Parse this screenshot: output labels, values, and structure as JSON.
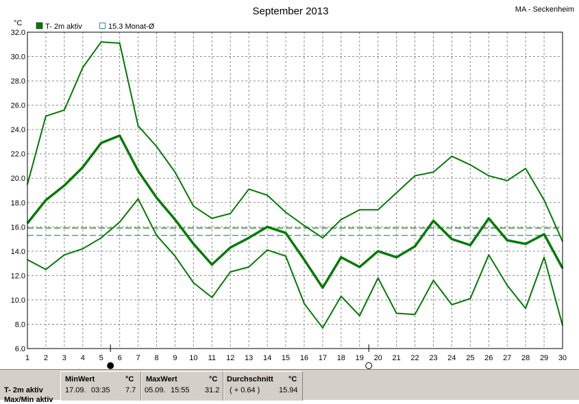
{
  "header": {
    "title": "September 2013",
    "station": "MA - Seckenheim",
    "unit": "°C"
  },
  "legend": {
    "series_label": "T- 2m aktiv",
    "mean_label": "15.3 Monat-Ø"
  },
  "colors": {
    "series": "#007a00",
    "monthly_mean_line": "#2f8f8f",
    "reference_line": "#006400",
    "grid": "#8a8a8a",
    "stats_bg": "#d4d0c8"
  },
  "chart_data": {
    "type": "line",
    "title": "September 2013",
    "ylabel": "°C",
    "xlabel": "",
    "xlim": [
      1,
      30
    ],
    "ylim": [
      6.0,
      32.0
    ],
    "x_ticks": [
      1,
      2,
      3,
      4,
      5,
      6,
      7,
      8,
      9,
      10,
      11,
      12,
      13,
      14,
      15,
      16,
      17,
      18,
      19,
      20,
      21,
      22,
      23,
      24,
      25,
      26,
      27,
      28,
      29,
      30
    ],
    "y_ticks": [
      "6.0",
      "8.0",
      "10.0",
      "12.0",
      "14.0",
      "16.0",
      "18.0",
      "20.0",
      "22.0",
      "24.0",
      "26.0",
      "28.0",
      "30.0",
      "32.0"
    ],
    "grid": true,
    "x": [
      1,
      2,
      3,
      4,
      5,
      6,
      7,
      8,
      9,
      10,
      11,
      12,
      13,
      14,
      15,
      16,
      17,
      18,
      19,
      20,
      21,
      22,
      23,
      24,
      25,
      26,
      27,
      28,
      29,
      30
    ],
    "series": [
      {
        "name": "Max",
        "width": 2,
        "values": [
          19.5,
          25.1,
          25.6,
          29.1,
          31.2,
          31.1,
          24.3,
          22.6,
          20.5,
          17.7,
          16.7,
          17.1,
          19.1,
          18.6,
          17.2,
          16.1,
          15.1,
          16.6,
          17.4,
          17.4,
          18.8,
          20.2,
          20.5,
          21.8,
          21.1,
          20.2,
          19.8,
          20.8,
          18.2,
          14.8
        ]
      },
      {
        "name": "T- 2m aktiv",
        "width": 3.5,
        "values": [
          16.3,
          18.2,
          19.4,
          20.9,
          22.9,
          23.5,
          20.6,
          18.4,
          16.6,
          14.6,
          12.9,
          14.3,
          15.1,
          16.0,
          15.5,
          13.3,
          11.0,
          13.5,
          12.7,
          14.0,
          13.5,
          14.4,
          16.5,
          15.0,
          14.5,
          16.7,
          14.9,
          14.6,
          15.4,
          12.6
        ]
      },
      {
        "name": "Min",
        "width": 2,
        "values": [
          13.3,
          12.5,
          13.7,
          14.2,
          15.1,
          16.4,
          18.3,
          15.3,
          13.6,
          11.4,
          10.2,
          12.3,
          12.7,
          14.1,
          13.6,
          9.7,
          7.7,
          10.3,
          8.7,
          11.8,
          8.9,
          8.8,
          11.6,
          9.6,
          10.1,
          13.7,
          11.2,
          9.3,
          13.5,
          7.9
        ]
      }
    ],
    "reference_lines": [
      {
        "value": 15.9,
        "style": "dash",
        "color": "#006400"
      },
      {
        "value": 15.3,
        "style": "dash",
        "color": "#2f8f8f"
      }
    ],
    "moon_phases": [
      {
        "day": 5.5,
        "phase": "new"
      },
      {
        "day": 19.5,
        "phase": "full"
      }
    ]
  },
  "stats": {
    "row1_label": "T- 2m aktiv",
    "row2_label": "Max/Min aktiv",
    "min": {
      "header": "MinWert",
      "unit": "°C",
      "date": "17.09.",
      "time": "03:35",
      "value": "7.7"
    },
    "max": {
      "header": "MaxWert",
      "unit": "°C",
      "date": "05.09.",
      "time": "15:55",
      "value": "31.2"
    },
    "avg": {
      "header": "Durchschnitt",
      "unit": "°C",
      "delta": "( + 0.64 )",
      "value": "15.94"
    }
  }
}
